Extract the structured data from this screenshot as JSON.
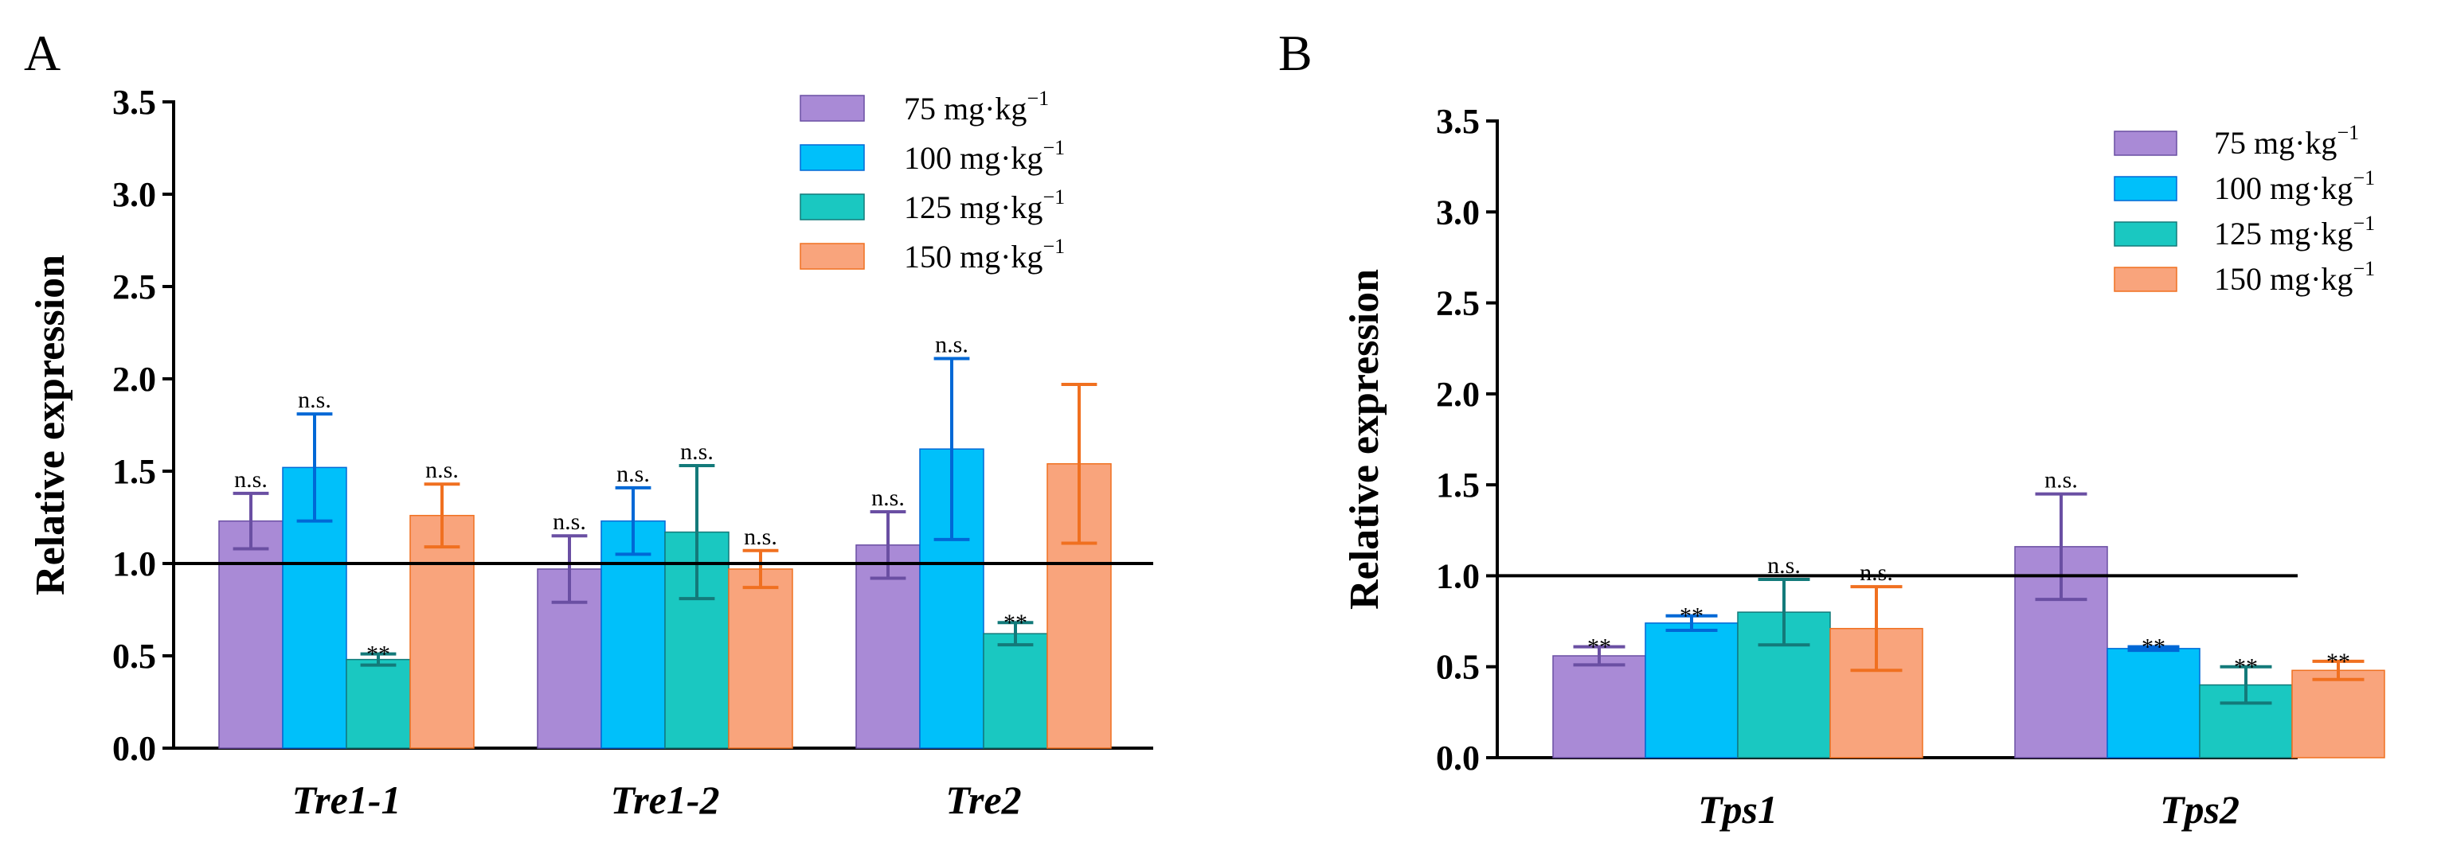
{
  "chart_data": [
    {
      "type": "bar",
      "panel": "A",
      "title": "",
      "xlabel": "",
      "ylabel": "Relative expression",
      "ylim": [
        0,
        3.5
      ],
      "yticks": [
        "0.0",
        "0.5",
        "1.0",
        "1.5",
        "2.0",
        "2.5",
        "3.0",
        "3.5"
      ],
      "reference_line": 1.0,
      "categories": [
        "Tre1-1",
        "Tre1-2",
        "Tre2"
      ],
      "series": [
        {
          "name": "75 mg·kg",
          "sup": "−1",
          "color": "#a98ad6",
          "stroke": "#6a4fa3",
          "values": [
            1.23,
            0.97,
            1.1
          ],
          "errors": [
            0.15,
            0.18,
            0.18
          ],
          "labels": [
            "n.s.",
            "n.s.",
            "n.s."
          ]
        },
        {
          "name": "100 mg·kg",
          "sup": "−1",
          "color": "#00c0fa",
          "stroke": "#0068d6",
          "values": [
            1.52,
            1.23,
            1.62
          ],
          "errors": [
            0.29,
            0.18,
            0.49
          ],
          "labels": [
            "n.s.",
            "n.s.",
            "n.s."
          ]
        },
        {
          "name": "125 mg·kg",
          "sup": "−1",
          "color": "#1ac8c1",
          "stroke": "#137a7a",
          "values": [
            0.48,
            1.17,
            0.62
          ],
          "errors": [
            0.03,
            0.36,
            0.06
          ],
          "labels": [
            "**",
            "n.s.",
            "**"
          ]
        },
        {
          "name": "150 mg·kg",
          "sup": "−1",
          "color": "#f9a47c",
          "stroke": "#f07020",
          "values": [
            1.26,
            0.97,
            1.54
          ],
          "errors": [
            0.17,
            0.1,
            0.43
          ],
          "labels": [
            "n.s.",
            "n.s.",
            ""
          ]
        }
      ]
    },
    {
      "type": "bar",
      "panel": "B",
      "title": "",
      "xlabel": "",
      "ylabel": "Relative expression",
      "ylim": [
        0,
        3.5
      ],
      "yticks": [
        "0.0",
        "0.5",
        "1.0",
        "1.5",
        "2.0",
        "2.5",
        "3.0",
        "3.5"
      ],
      "reference_line": 1.0,
      "categories": [
        "Tps1",
        "Tps2"
      ],
      "series": [
        {
          "name": "75 mg·kg",
          "sup": "−1",
          "color": "#a98ad6",
          "stroke": "#6a4fa3",
          "values": [
            0.56,
            1.16
          ],
          "errors": [
            0.05,
            0.29
          ],
          "labels": [
            "**",
            "n.s."
          ]
        },
        {
          "name": "100 mg·kg",
          "sup": "−1",
          "color": "#00c0fa",
          "stroke": "#0068d6",
          "values": [
            0.74,
            0.6
          ],
          "errors": [
            0.04,
            0.01
          ],
          "labels": [
            "**",
            "**"
          ]
        },
        {
          "name": "125 mg·kg",
          "sup": "−1",
          "color": "#1ac8c1",
          "stroke": "#137a7a",
          "values": [
            0.8,
            0.4
          ],
          "errors": [
            0.18,
            0.1
          ],
          "labels": [
            "n.s.",
            "**"
          ]
        },
        {
          "name": "150 mg·kg",
          "sup": "−1",
          "color": "#f9a47c",
          "stroke": "#f07020",
          "values": [
            0.71,
            0.48
          ],
          "errors": [
            0.23,
            0.05
          ],
          "labels": [
            "n.s.",
            "**"
          ]
        }
      ]
    }
  ]
}
